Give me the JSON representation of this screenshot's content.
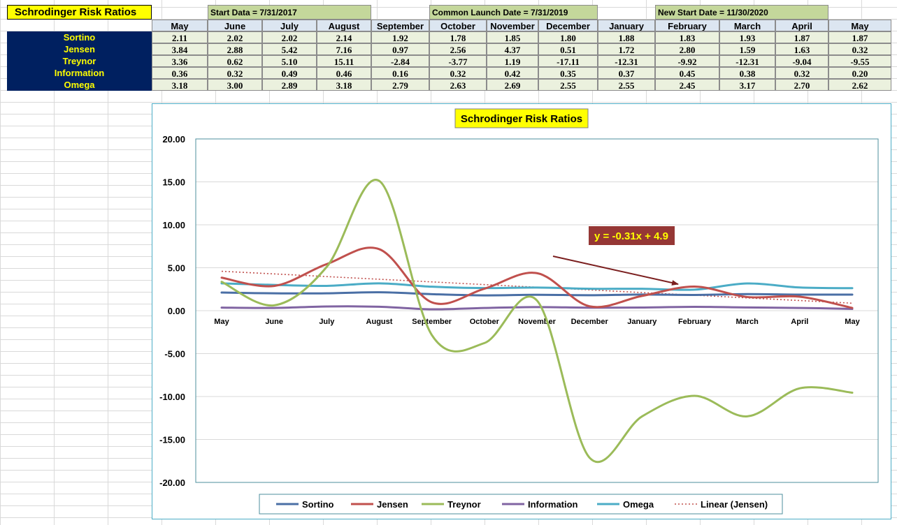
{
  "sheet": {
    "title": "Schrodinger Risk Ratios",
    "notes": [
      "Start Data = 7/31/2017",
      "Common Launch Date = 7/31/2019",
      "New Start Date = 11/30/2020"
    ],
    "months": [
      "May",
      "June",
      "July",
      "August",
      "September",
      "October",
      "November",
      "December",
      "January",
      "February",
      "March",
      "April",
      "May"
    ],
    "rows": [
      {
        "label": "Sortino",
        "values": [
          "2.11",
          "2.02",
          "2.02",
          "2.14",
          "1.92",
          "1.78",
          "1.85",
          "1.80",
          "1.88",
          "1.83",
          "1.93",
          "1.87",
          "1.87"
        ]
      },
      {
        "label": "Jensen",
        "values": [
          "3.84",
          "2.88",
          "5.42",
          "7.16",
          "0.97",
          "2.56",
          "4.37",
          "0.51",
          "1.72",
          "2.80",
          "1.59",
          "1.63",
          "0.32"
        ]
      },
      {
        "label": "Treynor",
        "values": [
          "3.36",
          "0.62",
          "5.10",
          "15.11",
          "-2.84",
          "-3.77",
          "1.19",
          "-17.11",
          "-12.31",
          "-9.92",
          "-12.31",
          "-9.04",
          "-9.55"
        ]
      },
      {
        "label": "Information",
        "values": [
          "0.36",
          "0.32",
          "0.49",
          "0.46",
          "0.16",
          "0.32",
          "0.42",
          "0.35",
          "0.37",
          "0.45",
          "0.38",
          "0.32",
          "0.20"
        ]
      },
      {
        "label": "Omega",
        "values": [
          "3.18",
          "3.00",
          "2.89",
          "3.18",
          "2.79",
          "2.63",
          "2.69",
          "2.55",
          "2.55",
          "2.45",
          "3.17",
          "2.70",
          "2.62"
        ]
      }
    ]
  },
  "chart_data": {
    "type": "line",
    "title": "Schrodinger Risk Ratios",
    "x": [
      "May",
      "June",
      "July",
      "August",
      "September",
      "October",
      "November",
      "December",
      "January",
      "February",
      "March",
      "April",
      "May"
    ],
    "y_ticks": [
      "20.00",
      "15.00",
      "10.00",
      "5.00",
      "0.00",
      "-5.00",
      "-10.00",
      "-15.00",
      "-20.00"
    ],
    "ylim": [
      -20,
      20
    ],
    "grid": true,
    "legend_position": "bottom",
    "series": [
      {
        "name": "Sortino",
        "color": "#4a6fa5",
        "values": [
          2.11,
          2.02,
          2.02,
          2.14,
          1.92,
          1.78,
          1.85,
          1.8,
          1.88,
          1.83,
          1.93,
          1.87,
          1.87
        ]
      },
      {
        "name": "Jensen",
        "color": "#c0504d",
        "values": [
          3.84,
          2.88,
          5.42,
          7.16,
          0.97,
          2.56,
          4.37,
          0.51,
          1.72,
          2.8,
          1.59,
          1.63,
          0.32
        ]
      },
      {
        "name": "Treynor",
        "color": "#9bbb59",
        "values": [
          3.36,
          0.62,
          5.1,
          15.11,
          -2.84,
          -3.77,
          1.19,
          -17.11,
          -12.31,
          -9.92,
          -12.31,
          -9.04,
          -9.55
        ]
      },
      {
        "name": "Information",
        "color": "#8064a2",
        "values": [
          0.36,
          0.32,
          0.49,
          0.46,
          0.16,
          0.32,
          0.42,
          0.35,
          0.37,
          0.45,
          0.38,
          0.32,
          0.2
        ]
      },
      {
        "name": "Omega",
        "color": "#4bacc6",
        "values": [
          3.18,
          3.0,
          2.89,
          3.18,
          2.79,
          2.63,
          2.69,
          2.55,
          2.55,
          2.45,
          3.17,
          2.7,
          2.62
        ]
      }
    ],
    "trendline": {
      "name": "Linear (Jensen)",
      "color": "#c0504d",
      "slope": -0.31,
      "intercept": 4.9
    },
    "annotation": {
      "text": "y = -0.31x + 4.9",
      "background": "#953735",
      "color": "#ffff00"
    }
  }
}
